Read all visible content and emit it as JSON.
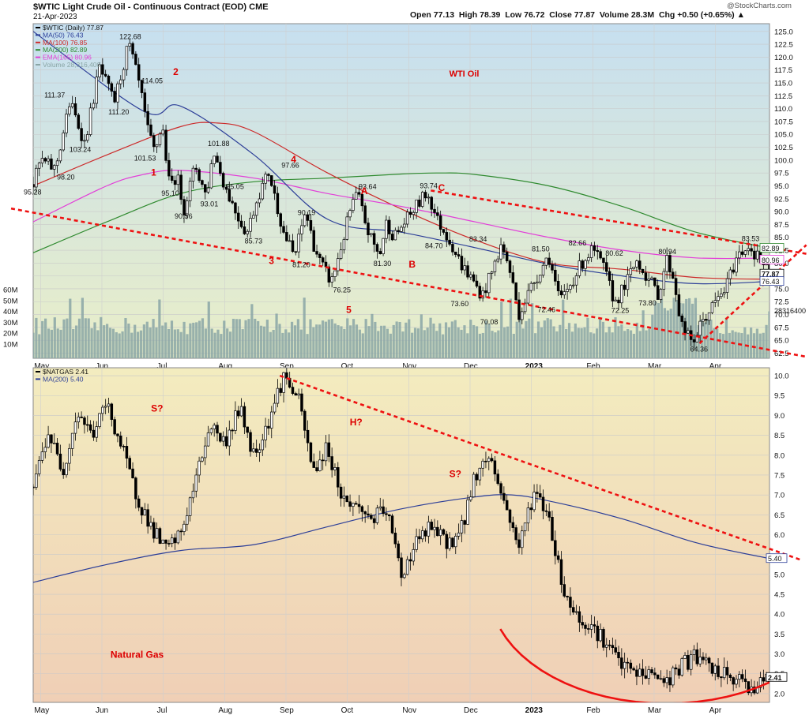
{
  "header": {
    "title": "$WTIC Light Crude Oil - Continuous Contract (EOD) CME",
    "date": "21-Apr-2023",
    "ohlc": "Open 77.13  High 78.39  Low 76.72  Close 77.87  Volume 28.3M  Chg +0.50 (+0.65%) ▲",
    "watermark": "@StockCharts.com"
  },
  "colors": {
    "oil_bg_top": "#c6dff0",
    "oil_bg_bottom": "#e9eec8",
    "gas_bg_top": "#f3ecbf",
    "gas_bg_bottom": "#f0cfb6",
    "ma50": "#2c3e98",
    "ma100": "#cc2a2a",
    "ma200": "#2f8a2f",
    "ema165": "#e23fd8",
    "volume": "#8aa6a6",
    "trendline": "#ee1111",
    "candle": "#000000",
    "label_red": "#dd0000"
  },
  "chart_data": [
    {
      "type": "candlestick",
      "symbol": "$WTIC",
      "title": "WTI Oil",
      "period": "Daily",
      "legend": [
        {
          "name": "$WTIC (Daily) 77.87",
          "color": "#000000"
        },
        {
          "name": "MA(50) 76.43",
          "color": "#2c3e98"
        },
        {
          "name": "MA(100) 76.85",
          "color": "#cc2a2a"
        },
        {
          "name": "MA(200) 82.89",
          "color": "#2f8a2f"
        },
        {
          "name": "EMA(165) 80.96",
          "color": "#e23fd8"
        },
        {
          "name": "Volume 28,316,400",
          "color": "#8aa6a6"
        }
      ],
      "x_tick_labels": [
        "May",
        "Jun",
        "Jul",
        "Aug",
        "Sep",
        "Oct",
        "Nov",
        "Dec",
        "2023",
        "Feb",
        "Mar",
        "Apr"
      ],
      "y_range": [
        61.5,
        126.5
      ],
      "y_ticks": [
        62.5,
        65.0,
        67.5,
        70.0,
        72.5,
        75.0,
        77.5,
        80.0,
        82.5,
        85.0,
        87.5,
        90.0,
        92.5,
        95.0,
        97.5,
        100.0,
        102.5,
        105.0,
        107.5,
        110.0,
        112.5,
        115.0,
        117.5,
        120.0,
        122.5,
        125.0
      ],
      "y_tick_labels": [
        "62.5",
        "65.0",
        "67.5",
        "70.0",
        "72.5",
        "75.0",
        "",
        "80.0",
        "82.5",
        "85.0",
        "87.5",
        "90.0",
        "92.5",
        "95.0",
        "97.5",
        "100.0",
        "102.5",
        "105.0",
        "107.5",
        "110.0",
        "112.5",
        "115.0",
        "117.5",
        "120.0",
        "122.5",
        "125.0"
      ],
      "volume_ticks": [
        "10M",
        "20M",
        "30M",
        "40M",
        "50M",
        "60M"
      ],
      "volume_max_M": 80,
      "price_path_x": [
        0,
        0.01,
        0.03,
        0.05,
        0.07,
        0.09,
        0.11,
        0.13,
        0.145,
        0.155,
        0.165,
        0.175,
        0.185,
        0.195,
        0.205,
        0.22,
        0.235,
        0.245,
        0.26,
        0.275,
        0.29,
        0.305,
        0.32,
        0.34,
        0.355,
        0.37,
        0.38,
        0.39,
        0.405,
        0.42,
        0.43,
        0.44,
        0.455,
        0.47,
        0.48,
        0.49,
        0.505,
        0.52,
        0.535,
        0.55,
        0.565,
        0.58,
        0.595,
        0.61,
        0.625,
        0.635,
        0.645,
        0.66,
        0.675,
        0.69,
        0.7,
        0.715,
        0.73,
        0.745,
        0.76,
        0.775,
        0.79,
        0.805,
        0.82,
        0.835,
        0.85,
        0.86,
        0.87,
        0.88,
        0.895,
        0.91,
        0.925,
        0.94,
        0.955,
        0.97,
        0.985,
        1.0
      ],
      "price_path_y": [
        95.28,
        100,
        98.2,
        111.37,
        103.24,
        118,
        111.2,
        122.68,
        114.05,
        106,
        101.53,
        107,
        95.1,
        97,
        90.56,
        99,
        93.01,
        101.88,
        95.05,
        90,
        85.73,
        93,
        97.66,
        86,
        81.2,
        90.19,
        84,
        80,
        76.25,
        84,
        90,
        93.64,
        86,
        81.3,
        88,
        85,
        88,
        91,
        93.74,
        88,
        84.7,
        80,
        77,
        73.6,
        79,
        83.34,
        80,
        70.08,
        75,
        79,
        81.5,
        72.46,
        76,
        80,
        82.66,
        79,
        72.25,
        76,
        80.62,
        77,
        73.8,
        80.94,
        77,
        68,
        64.36,
        69,
        72,
        75,
        81,
        83.53,
        81,
        77.87
      ],
      "labels": [
        {
          "text": "122.68",
          "xf": 0.13,
          "price": 123.5
        },
        {
          "text": "111.37",
          "xf": 0.028,
          "price": 112.2
        },
        {
          "text": "111.20",
          "xf": 0.115,
          "price": 108.9
        },
        {
          "text": "103.24",
          "xf": 0.062,
          "price": 101.6
        },
        {
          "text": "98.20",
          "xf": 0.045,
          "price": 96.2
        },
        {
          "text": "95.28",
          "xf": 0.0,
          "price": 93.3
        },
        {
          "text": "114.05",
          "xf": 0.16,
          "price": 114.9
        },
        {
          "text": "101.53",
          "xf": 0.15,
          "price": 99.9
        },
        {
          "text": "95.10",
          "xf": 0.187,
          "price": 93.1
        },
        {
          "text": "90.56",
          "xf": 0.205,
          "price": 88.6
        },
        {
          "text": "101.88",
          "xf": 0.25,
          "price": 102.7
        },
        {
          "text": "93.01",
          "xf": 0.24,
          "price": 91.0
        },
        {
          "text": "95.05",
          "xf": 0.275,
          "price": 94.4
        },
        {
          "text": "85.73",
          "xf": 0.3,
          "price": 83.8
        },
        {
          "text": "97.66",
          "xf": 0.35,
          "price": 98.5
        },
        {
          "text": "90.19",
          "xf": 0.372,
          "price": 89.3
        },
        {
          "text": "81.20",
          "xf": 0.365,
          "price": 79.2
        },
        {
          "text": "76.25",
          "xf": 0.42,
          "price": 74.3
        },
        {
          "text": "93.64",
          "xf": 0.455,
          "price": 94.4
        },
        {
          "text": "81.30",
          "xf": 0.475,
          "price": 79.4
        },
        {
          "text": "93.74",
          "xf": 0.538,
          "price": 94.5
        },
        {
          "text": "84.70",
          "xf": 0.545,
          "price": 82.9
        },
        {
          "text": "83.34",
          "xf": 0.605,
          "price": 84.2
        },
        {
          "text": "73.60",
          "xf": 0.58,
          "price": 71.6
        },
        {
          "text": "70.08",
          "xf": 0.62,
          "price": 68.1
        },
        {
          "text": "81.50",
          "xf": 0.69,
          "price": 82.3
        },
        {
          "text": "72.46",
          "xf": 0.698,
          "price": 70.5
        },
        {
          "text": "82.66",
          "xf": 0.74,
          "price": 83.4
        },
        {
          "text": "80.62",
          "xf": 0.79,
          "price": 81.4
        },
        {
          "text": "72.25",
          "xf": 0.798,
          "price": 70.3
        },
        {
          "text": "73.80",
          "xf": 0.835,
          "price": 71.8
        },
        {
          "text": "80.94",
          "xf": 0.862,
          "price": 81.7
        },
        {
          "text": "64.36",
          "xf": 0.905,
          "price": 62.8
        },
        {
          "text": "83.53",
          "xf": 0.975,
          "price": 84.3
        }
      ],
      "wave_labels": [
        {
          "text": "1",
          "xf": 0.16,
          "price": 97.0
        },
        {
          "text": "2",
          "xf": 0.19,
          "price": 116.5
        },
        {
          "text": "3",
          "xf": 0.32,
          "price": 79.8
        },
        {
          "text": "4",
          "xf": 0.35,
          "price": 99.5
        },
        {
          "text": "5",
          "xf": 0.425,
          "price": 70.3
        },
        {
          "text": "A",
          "xf": 0.445,
          "price": 93.4
        },
        {
          "text": "B",
          "xf": 0.51,
          "price": 79.1
        },
        {
          "text": "C",
          "xf": 0.55,
          "price": 94.0
        },
        {
          "text": "WTI Oil",
          "xf": 0.565,
          "price": 116.2
        }
      ],
      "right_value_labels": [
        {
          "text": "82.89",
          "price": 82.89
        },
        {
          "text": "80.96",
          "price": 80.6
        },
        {
          "text": "77.87",
          "price": 77.87
        },
        {
          "text": "76.43",
          "price": 76.43
        }
      ],
      "volume_value_label": "28316400",
      "ma_points": {
        "ma50": [
          [
            0.0,
            125.0
          ],
          [
            0.15,
            109.5
          ],
          [
            0.2,
            110.5
          ],
          [
            0.3,
            101.0
          ],
          [
            0.4,
            88.5
          ],
          [
            0.5,
            86.0
          ],
          [
            0.6,
            83.0
          ],
          [
            0.7,
            79.8
          ],
          [
            0.8,
            77.5
          ],
          [
            0.9,
            76.0
          ],
          [
            1.0,
            76.43
          ]
        ],
        "ma100": [
          [
            0.0,
            95.0
          ],
          [
            0.1,
            101.0
          ],
          [
            0.2,
            106.5
          ],
          [
            0.25,
            107.2
          ],
          [
            0.3,
            105.5
          ],
          [
            0.4,
            97.5
          ],
          [
            0.5,
            90.5
          ],
          [
            0.6,
            84.5
          ],
          [
            0.7,
            80.0
          ],
          [
            0.8,
            78.8
          ],
          [
            0.9,
            77.2
          ],
          [
            1.0,
            76.85
          ]
        ],
        "ma200": [
          [
            0.0,
            82.0
          ],
          [
            0.1,
            88.0
          ],
          [
            0.2,
            93.5
          ],
          [
            0.3,
            95.8
          ],
          [
            0.4,
            96.5
          ],
          [
            0.5,
            97.3
          ],
          [
            0.55,
            97.5
          ],
          [
            0.6,
            97.2
          ],
          [
            0.7,
            95.0
          ],
          [
            0.8,
            91.0
          ],
          [
            0.9,
            86.0
          ],
          [
            1.0,
            82.89
          ]
        ],
        "ema165": [
          [
            0.0,
            88.0
          ],
          [
            0.1,
            95.0
          ],
          [
            0.15,
            97.2
          ],
          [
            0.2,
            98.0
          ],
          [
            0.3,
            96.5
          ],
          [
            0.4,
            93.5
          ],
          [
            0.5,
            91.0
          ],
          [
            0.6,
            88.0
          ],
          [
            0.7,
            85.0
          ],
          [
            0.8,
            82.5
          ],
          [
            0.9,
            81.0
          ],
          [
            1.0,
            80.96
          ]
        ]
      },
      "trendlines": [
        {
          "from": [
            -0.03,
            90.6
          ],
          "to": [
            1.05,
            61.8
          ]
        },
        {
          "from": [
            0.54,
            94.1
          ],
          "to": [
            1.05,
            81.8
          ]
        },
        {
          "from": [
            0.905,
            64.4
          ],
          "to": [
            1.05,
            83.5
          ]
        }
      ]
    },
    {
      "type": "candlestick",
      "symbol": "$NATGAS",
      "title": "Natural Gas",
      "legend": [
        {
          "name": "$NATGAS 2.41",
          "color": "#000000"
        },
        {
          "name": "MA(200) 5.40",
          "color": "#2c3e98"
        }
      ],
      "x_tick_labels": [
        "May",
        "Jun",
        "Jul",
        "Aug",
        "Sep",
        "Oct",
        "Nov",
        "Dec",
        "2023",
        "Feb",
        "Mar",
        "Apr"
      ],
      "y_range": [
        1.78,
        10.2
      ],
      "y_ticks": [
        2.0,
        2.5,
        3.0,
        3.5,
        4.0,
        4.5,
        5.0,
        5.5,
        6.0,
        6.5,
        7.0,
        7.5,
        8.0,
        8.5,
        9.0,
        9.5,
        10.0
      ],
      "y_tick_labels": [
        "2.0",
        "2.5",
        "3.0",
        "3.5",
        "4.0",
        "4.5",
        "5.0",
        "",
        "6.0",
        "6.5",
        "7.0",
        "7.5",
        "8.0",
        "8.5",
        "9.0",
        "9.5",
        "10.0"
      ],
      "price_path_x": [
        0,
        0.02,
        0.04,
        0.06,
        0.08,
        0.1,
        0.12,
        0.14,
        0.16,
        0.18,
        0.2,
        0.22,
        0.24,
        0.26,
        0.28,
        0.3,
        0.32,
        0.34,
        0.36,
        0.38,
        0.4,
        0.42,
        0.44,
        0.46,
        0.48,
        0.5,
        0.52,
        0.54,
        0.56,
        0.58,
        0.6,
        0.62,
        0.64,
        0.66,
        0.68,
        0.7,
        0.72,
        0.74,
        0.76,
        0.78,
        0.8,
        0.82,
        0.84,
        0.86,
        0.88,
        0.9,
        0.92,
        0.94,
        0.96,
        0.98,
        1.0
      ],
      "price_path_y": [
        7.2,
        8.6,
        7.6,
        9.1,
        8.5,
        9.3,
        8.2,
        7.0,
        6.2,
        5.6,
        6.0,
        7.3,
        8.8,
        8.3,
        9.2,
        8.0,
        8.9,
        10.0,
        9.4,
        7.6,
        8.2,
        6.9,
        6.7,
        6.4,
        6.6,
        5.0,
        5.8,
        6.2,
        5.8,
        6.0,
        7.5,
        8.0,
        6.8,
        5.7,
        7.1,
        6.5,
        4.6,
        3.9,
        3.7,
        3.2,
        2.7,
        2.5,
        2.5,
        2.3,
        2.7,
        2.95,
        2.6,
        2.45,
        2.3,
        2.15,
        2.41
      ],
      "ma_points": [
        [
          0.0,
          4.8
        ],
        [
          0.1,
          5.25
        ],
        [
          0.2,
          5.6
        ],
        [
          0.3,
          5.75
        ],
        [
          0.4,
          6.2
        ],
        [
          0.5,
          6.65
        ],
        [
          0.6,
          6.95
        ],
        [
          0.65,
          7.0
        ],
        [
          0.7,
          6.85
        ],
        [
          0.8,
          6.4
        ],
        [
          0.9,
          5.8
        ],
        [
          1.0,
          5.4
        ]
      ],
      "trendline": {
        "from": [
          0.335,
          10.0
        ],
        "to": [
          1.045,
          5.35
        ]
      },
      "arc": {
        "cx": 0.86,
        "cy": 4.6,
        "rx": 0.24,
        "ry_price": 2.85,
        "start_deg": 205,
        "end_deg": 340
      },
      "annotations": [
        {
          "text": "S?",
          "xf": 0.16,
          "price": 9.1
        },
        {
          "text": "H?",
          "xf": 0.43,
          "price": 8.75
        },
        {
          "text": "S?",
          "xf": 0.565,
          "price": 7.45
        },
        {
          "text": "Natural Gas",
          "xf": 0.105,
          "price": 2.9
        }
      ],
      "right_value_labels": [
        {
          "text": "5.40",
          "price": 5.4
        },
        {
          "text": "2.41",
          "price": 2.41
        }
      ]
    }
  ]
}
